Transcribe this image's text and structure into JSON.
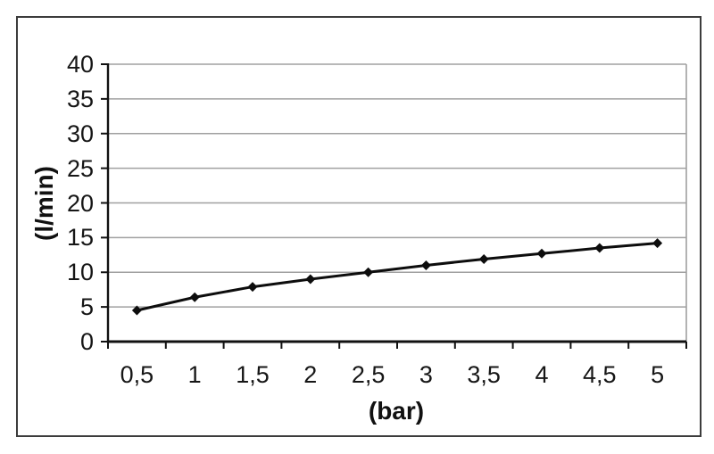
{
  "chart_data": {
    "type": "line",
    "xlabel": "(bar)",
    "ylabel": "(l/min)",
    "categories": [
      "0,5",
      "1",
      "1,5",
      "2",
      "2,5",
      "3",
      "3,5",
      "4",
      "4,5",
      "5"
    ],
    "values": [
      4.5,
      6.4,
      7.9,
      9.0,
      10.0,
      11.0,
      11.9,
      12.7,
      13.5,
      14.2
    ],
    "y_tick_labels": [
      "0",
      "5",
      "10",
      "15",
      "20",
      "25",
      "30",
      "35",
      "40"
    ],
    "ylim": [
      0,
      40
    ],
    "y_tick_step": 5,
    "grid": "horizontal-only",
    "legend_position": "none",
    "marker": "diamond",
    "colors": {
      "line": "#0d0d0d",
      "marker": "#0d0d0d",
      "grid": "#a0a0a0",
      "axis": "#111111",
      "text": "#161616",
      "figure_border": "#3c3c3c",
      "background": "#ffffff"
    }
  }
}
